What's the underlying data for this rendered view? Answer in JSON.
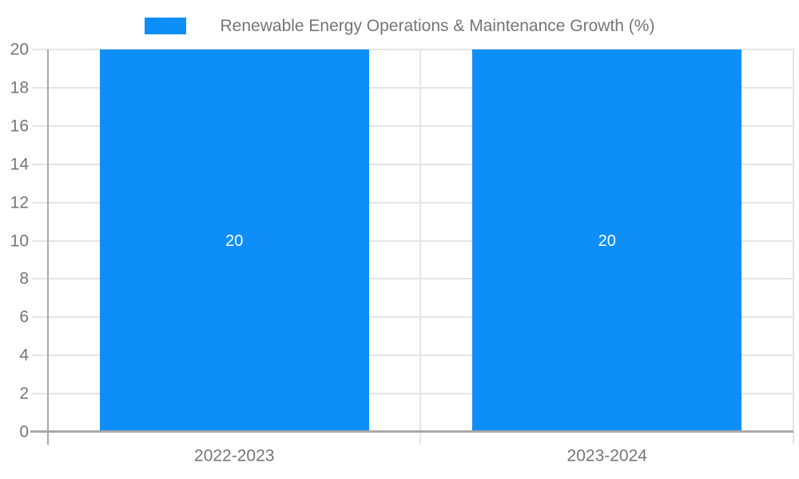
{
  "chart_data": {
    "type": "bar",
    "title": "Renewable Energy Operations & Maintenance Growth (%)",
    "categories": [
      "2022-2023",
      "2023-2024"
    ],
    "values": [
      20,
      20
    ],
    "bar_labels": [
      "20",
      "20"
    ],
    "xlabel": "",
    "ylabel": "",
    "ylim": [
      0,
      20
    ],
    "ytick_step": 2,
    "ytick_labels": [
      "0",
      "2",
      "4",
      "6",
      "8",
      "10",
      "12",
      "14",
      "16",
      "18",
      "20"
    ],
    "grid": true,
    "legend_position": "top-center",
    "colors": {
      "bar": "#0d8ef8",
      "grid_line": "#e4e4e4",
      "axis_line": "#a9a9a9",
      "tick_text": "#757575",
      "legend_text": "#757575",
      "bar_label_text": "#ffffff",
      "background": "#ffffff"
    }
  }
}
